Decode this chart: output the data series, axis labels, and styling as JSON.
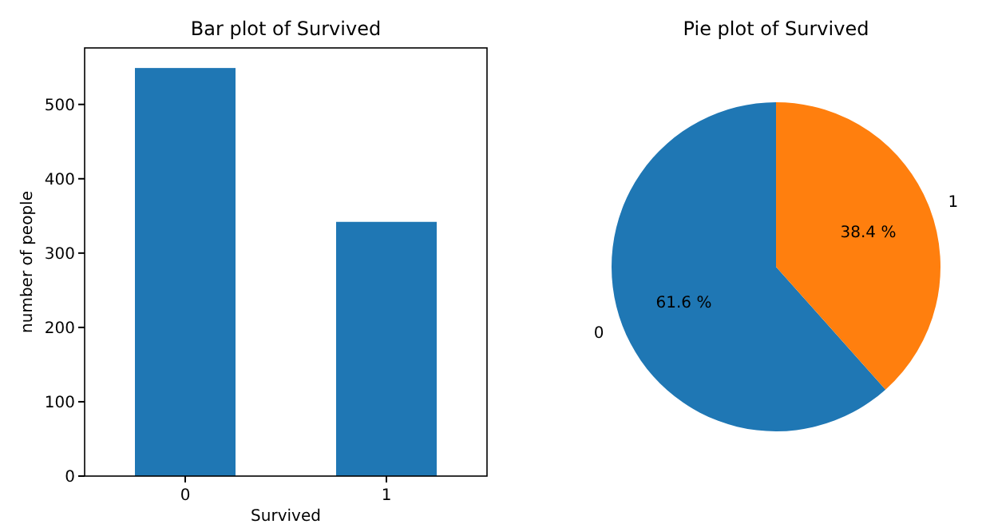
{
  "chart_data": [
    {
      "type": "bar",
      "title": "Bar plot of Survived",
      "xlabel": "Survived",
      "ylabel": "number of people",
      "categories": [
        "0",
        "1"
      ],
      "values": [
        549,
        342
      ],
      "color": "#1f77b4",
      "ylim": [
        0,
        576
      ],
      "yticks": [
        0,
        100,
        200,
        300,
        400,
        500
      ]
    },
    {
      "type": "pie",
      "title": "Pie plot of Survived",
      "categories": [
        "0",
        "1"
      ],
      "values": [
        61.6,
        38.4
      ],
      "colors": [
        "#1f77b4",
        "#ff7f0e"
      ],
      "value_labels": [
        "61.6 %",
        "38.4 %"
      ]
    }
  ]
}
